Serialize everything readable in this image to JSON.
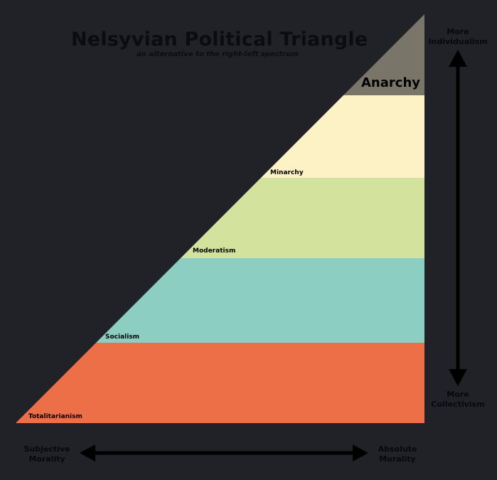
{
  "title": "Nelsyvian Political Triangle",
  "subtitle": "an alternative to the right-left spectrum",
  "bands": [
    {
      "label": "Anarchy",
      "color": "#7a7569"
    },
    {
      "label": "Minarchy",
      "color": "#fdf2c6"
    },
    {
      "label": "Moderatism",
      "color": "#d3e29d"
    },
    {
      "label": "Socialism",
      "color": "#8ccfc2"
    },
    {
      "label": "Totalitarianism",
      "color": "#ec6f47"
    }
  ],
  "vertical_axis": {
    "top_line1": "More",
    "top_line2": "Individualism",
    "bottom_line1": "More",
    "bottom_line2": "Collectivism"
  },
  "horizontal_axis": {
    "left_line1": "Subjective",
    "left_line2": "Morality",
    "right_line1": "Absolute",
    "right_line2": "Morality"
  },
  "colors": {
    "background": "#202227",
    "arrow": "#000000",
    "text": "#0c0c10"
  }
}
